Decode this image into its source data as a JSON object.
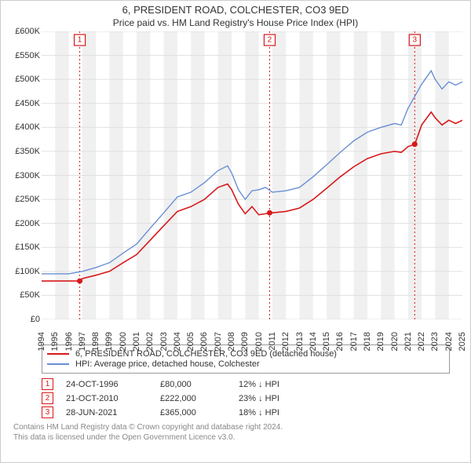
{
  "title": "6, PRESIDENT ROAD, COLCHESTER, CO3 9ED",
  "subtitle": "Price paid vs. HM Land Registry's House Price Index (HPI)",
  "chart": {
    "type": "line",
    "background_band_color": "#f0f0f0",
    "background_color": "#ffffff",
    "grid_color": "#e0e0e0",
    "axis_font_size": 11,
    "x_years": [
      1994,
      1995,
      1996,
      1997,
      1998,
      1999,
      2000,
      2001,
      2002,
      2003,
      2004,
      2005,
      2006,
      2007,
      2008,
      2009,
      2010,
      2011,
      2012,
      2013,
      2014,
      2015,
      2016,
      2017,
      2018,
      2019,
      2020,
      2021,
      2022,
      2023,
      2024,
      2025
    ],
    "y_ticks": [
      0,
      50,
      100,
      150,
      200,
      250,
      300,
      350,
      400,
      450,
      500,
      550,
      600
    ],
    "y_tick_labels": [
      "£0",
      "£50K",
      "£100K",
      "£150K",
      "£200K",
      "£250K",
      "£300K",
      "£350K",
      "£400K",
      "£450K",
      "£500K",
      "£550K",
      "£600K"
    ],
    "ylim": [
      0,
      600
    ],
    "xlim": [
      1994,
      2025
    ],
    "series": [
      {
        "name": "6, PRESIDENT ROAD, COLCHESTER, CO3 9ED (detached house)",
        "color": "#d7191c",
        "line_width": 1.6,
        "data": [
          [
            1994,
            80
          ],
          [
            1995,
            80
          ],
          [
            1996,
            80
          ],
          [
            1996.8,
            80
          ],
          [
            1997,
            85
          ],
          [
            1998,
            92
          ],
          [
            1999,
            100
          ],
          [
            2000,
            118
          ],
          [
            2001,
            135
          ],
          [
            2002,
            165
          ],
          [
            2003,
            195
          ],
          [
            2004,
            225
          ],
          [
            2005,
            235
          ],
          [
            2006,
            250
          ],
          [
            2007,
            275
          ],
          [
            2007.7,
            282
          ],
          [
            2008,
            270
          ],
          [
            2008.5,
            240
          ],
          [
            2009,
            220
          ],
          [
            2009.5,
            235
          ],
          [
            2010,
            218
          ],
          [
            2010.5,
            220
          ],
          [
            2010.8,
            222
          ],
          [
            2011,
            222
          ],
          [
            2012,
            225
          ],
          [
            2013,
            232
          ],
          [
            2014,
            250
          ],
          [
            2015,
            273
          ],
          [
            2016,
            297
          ],
          [
            2017,
            318
          ],
          [
            2018,
            335
          ],
          [
            2019,
            345
          ],
          [
            2020,
            350
          ],
          [
            2020.5,
            348
          ],
          [
            2021,
            360
          ],
          [
            2021.5,
            365
          ],
          [
            2022,
            405
          ],
          [
            2022.7,
            432
          ],
          [
            2023,
            420
          ],
          [
            2023.5,
            405
          ],
          [
            2024,
            415
          ],
          [
            2024.5,
            408
          ],
          [
            2025,
            415
          ]
        ]
      },
      {
        "name": "HPI: Average price, detached house, Colchester",
        "color": "#6a8fd4",
        "line_width": 1.4,
        "data": [
          [
            1994,
            95
          ],
          [
            1995,
            95
          ],
          [
            1996,
            95
          ],
          [
            1997,
            100
          ],
          [
            1998,
            108
          ],
          [
            1999,
            118
          ],
          [
            2000,
            138
          ],
          [
            2001,
            157
          ],
          [
            2002,
            190
          ],
          [
            2003,
            222
          ],
          [
            2004,
            255
          ],
          [
            2005,
            265
          ],
          [
            2006,
            285
          ],
          [
            2007,
            310
          ],
          [
            2007.7,
            320
          ],
          [
            2008,
            305
          ],
          [
            2008.5,
            270
          ],
          [
            2009,
            250
          ],
          [
            2009.5,
            268
          ],
          [
            2010,
            270
          ],
          [
            2010.5,
            275
          ],
          [
            2011,
            265
          ],
          [
            2012,
            268
          ],
          [
            2013,
            275
          ],
          [
            2014,
            297
          ],
          [
            2015,
            322
          ],
          [
            2016,
            348
          ],
          [
            2017,
            372
          ],
          [
            2018,
            390
          ],
          [
            2019,
            400
          ],
          [
            2020,
            408
          ],
          [
            2020.5,
            405
          ],
          [
            2021,
            440
          ],
          [
            2022,
            490
          ],
          [
            2022.7,
            518
          ],
          [
            2023,
            500
          ],
          [
            2023.5,
            480
          ],
          [
            2024,
            495
          ],
          [
            2024.5,
            488
          ],
          [
            2025,
            495
          ]
        ]
      }
    ],
    "markers": [
      {
        "num": "1",
        "x": 1996.81,
        "color": "#d7191c",
        "point_y": 80
      },
      {
        "num": "2",
        "x": 2010.8,
        "color": "#d7191c",
        "point_y": 222
      },
      {
        "num": "3",
        "x": 2021.49,
        "color": "#d7191c",
        "point_y": 365
      }
    ]
  },
  "legend": [
    {
      "label": "6, PRESIDENT ROAD, COLCHESTER, CO3 9ED (detached house)",
      "color": "#d7191c"
    },
    {
      "label": "HPI: Average price, detached house, Colchester",
      "color": "#6a8fd4"
    }
  ],
  "sales": [
    {
      "num": "1",
      "color": "#d7191c",
      "date": "24-OCT-1996",
      "price": "£80,000",
      "delta": "12% ↓ HPI"
    },
    {
      "num": "2",
      "color": "#d7191c",
      "date": "21-OCT-2010",
      "price": "£222,000",
      "delta": "23% ↓ HPI"
    },
    {
      "num": "3",
      "color": "#d7191c",
      "date": "28-JUN-2021",
      "price": "£365,000",
      "delta": "18% ↓ HPI"
    }
  ],
  "footer": {
    "line1": "Contains HM Land Registry data © Crown copyright and database right 2024.",
    "line2": "This data is licensed under the Open Government Licence v3.0."
  }
}
